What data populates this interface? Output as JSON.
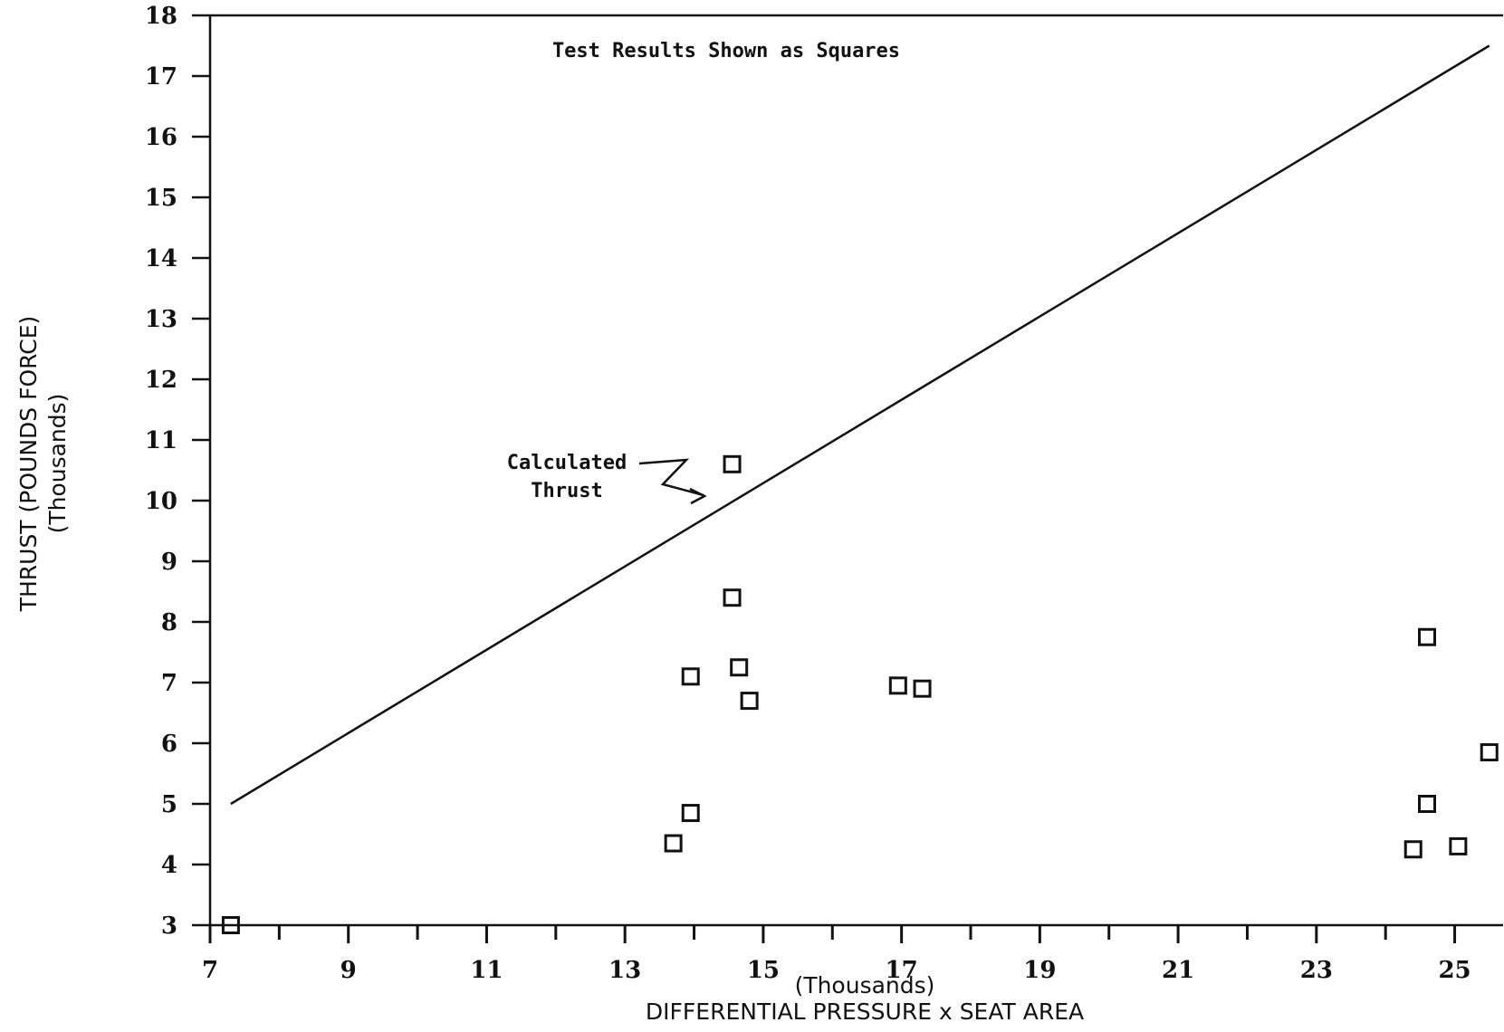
{
  "chart_data": {
    "type": "scatter",
    "title": "",
    "xlabel": "DIFFERENTIAL PRESSURE x SEAT AREA",
    "xlabel_units": "(Thousands)",
    "ylabel": "THRUST (POUNDS FORCE)",
    "ylabel_units": "(Thousands)",
    "xlim": [
      7,
      25.7
    ],
    "ylim": [
      3,
      18
    ],
    "x_ticks": [
      7,
      9,
      11,
      13,
      15,
      17,
      19,
      21,
      23,
      25
    ],
    "y_ticks": [
      3,
      4,
      5,
      6,
      7,
      8,
      9,
      10,
      11,
      12,
      13,
      14,
      15,
      16,
      17,
      18
    ],
    "grid": false,
    "legend_note": "Test Results Shown as Squares",
    "annotation": {
      "label_line1": "Calculated",
      "label_line2": "Thrust"
    },
    "series": [
      {
        "kind": "line",
        "points": [
          {
            "x": 7.3,
            "y": 5.0
          },
          {
            "x": 25.5,
            "y": 17.5
          }
        ]
      },
      {
        "kind": "markers",
        "marker": "square",
        "points": [
          {
            "x": 7.3,
            "y": 3.0
          },
          {
            "x": 13.7,
            "y": 4.35
          },
          {
            "x": 13.95,
            "y": 4.85
          },
          {
            "x": 13.95,
            "y": 7.1
          },
          {
            "x": 14.55,
            "y": 10.6
          },
          {
            "x": 14.55,
            "y": 8.4
          },
          {
            "x": 14.65,
            "y": 7.25
          },
          {
            "x": 14.8,
            "y": 6.7
          },
          {
            "x": 16.95,
            "y": 6.95
          },
          {
            "x": 17.3,
            "y": 6.9
          },
          {
            "x": 24.4,
            "y": 4.25
          },
          {
            "x": 24.6,
            "y": 5.0
          },
          {
            "x": 24.6,
            "y": 7.75
          },
          {
            "x": 25.05,
            "y": 4.3
          },
          {
            "x": 25.5,
            "y": 5.85
          }
        ]
      }
    ]
  }
}
